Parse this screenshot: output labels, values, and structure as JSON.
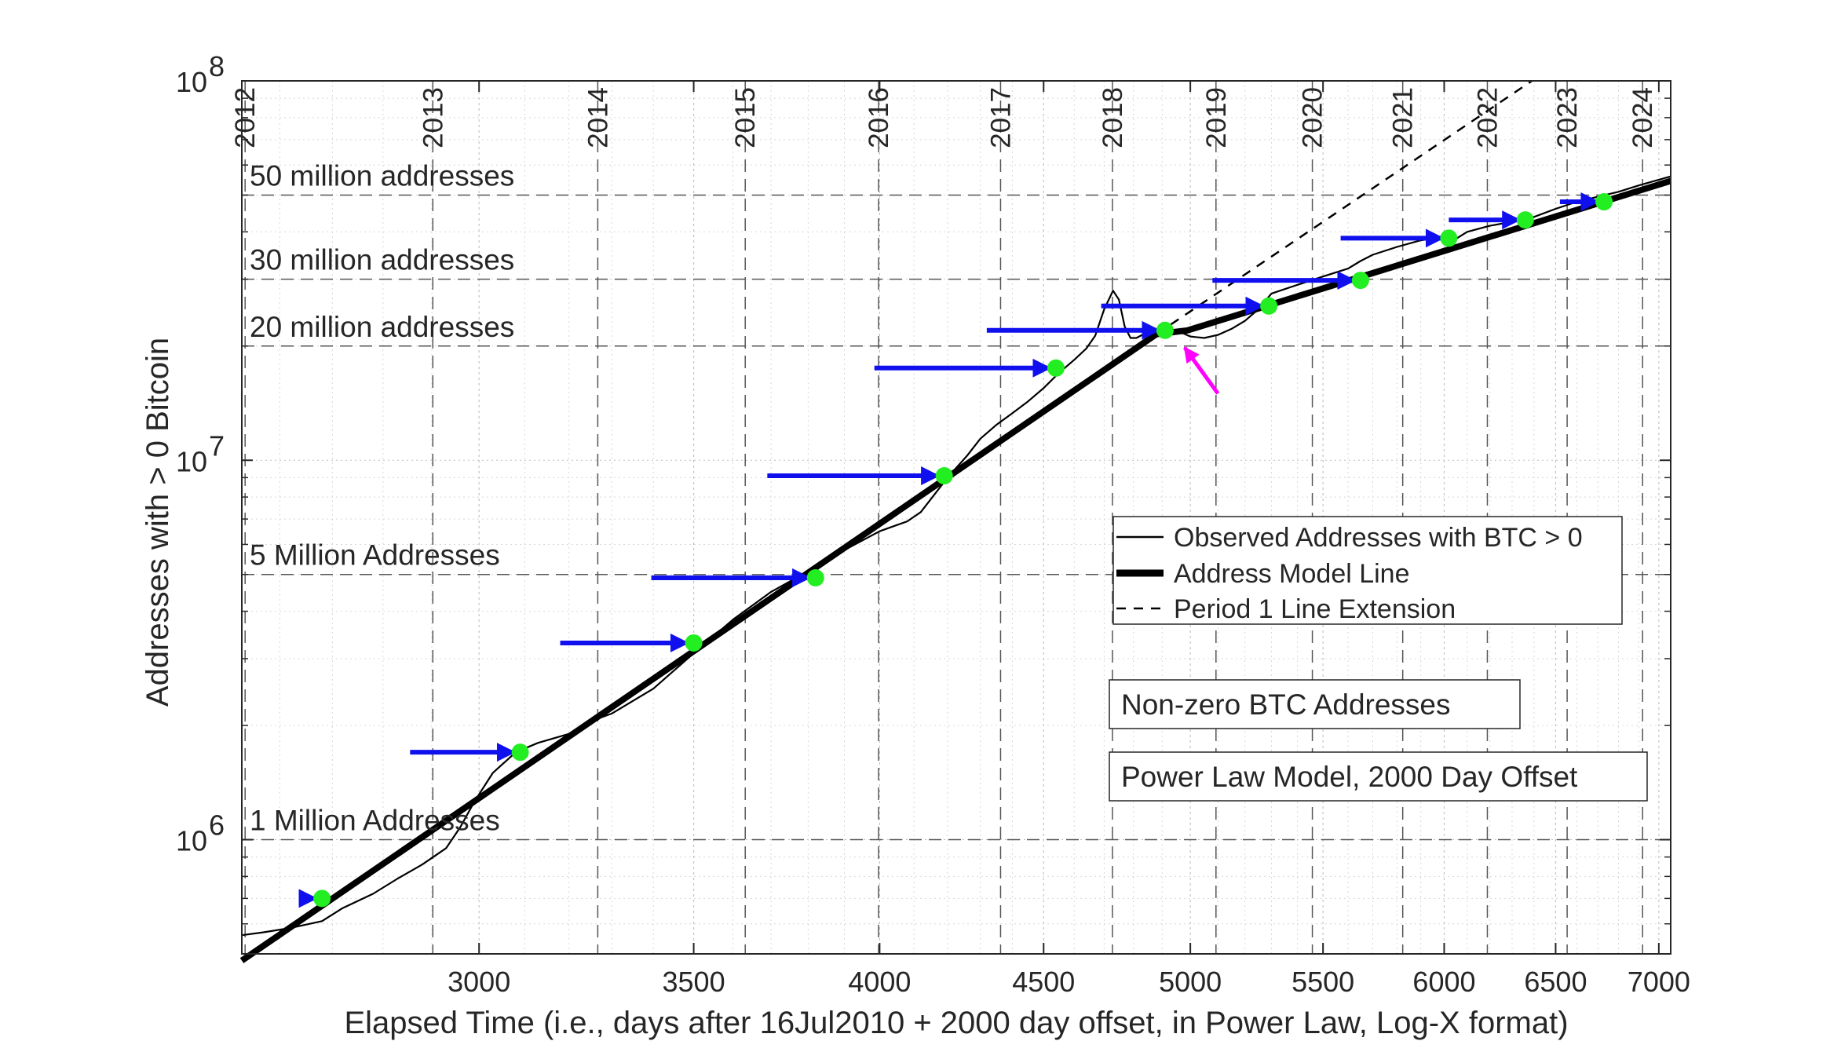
{
  "chart_data": {
    "type": "line",
    "xlabel": "Elapsed Time (i.e., days after 16Jul2010 + 2000 day offset, in Power Law, Log-X format)",
    "ylabel": "Addresses with > 0 Bitcoin",
    "x_scale": "log",
    "y_scale": "log",
    "xlim": [
      2530,
      7060
    ],
    "ylim": [
      500000,
      100000000
    ],
    "x_ticks": [
      3000,
      3500,
      4000,
      4500,
      5000,
      5500,
      6000,
      6500,
      7000
    ],
    "x_tick_labels": [
      "3000",
      "3500",
      "4000",
      "4500",
      "5000",
      "5500",
      "6000",
      "6500",
      "7000"
    ],
    "y_ticks": [
      1000000,
      10000000,
      100000000
    ],
    "y_tick_labels": [
      {
        "base": "10",
        "exp": "6"
      },
      {
        "base": "10",
        "exp": "7"
      },
      {
        "base": "10",
        "exp": "8"
      }
    ],
    "grid": "on",
    "year_lines": [
      {
        "label": "2012",
        "x": 2536
      },
      {
        "label": "2013",
        "x": 2902
      },
      {
        "label": "2014",
        "x": 3267
      },
      {
        "label": "2015",
        "x": 3632
      },
      {
        "label": "2016",
        "x": 3997
      },
      {
        "label": "2017",
        "x": 4363
      },
      {
        "label": "2018",
        "x": 4728
      },
      {
        "label": "2019",
        "x": 5093
      },
      {
        "label": "2020",
        "x": 5458
      },
      {
        "label": "2021",
        "x": 5824
      },
      {
        "label": "2022",
        "x": 6189
      },
      {
        "label": "2023",
        "x": 6554
      },
      {
        "label": "2024",
        "x": 6919
      }
    ],
    "reference_lines": [
      {
        "label": "50 million addresses",
        "y": 50000000
      },
      {
        "label": "30 million addresses",
        "y": 30000000
      },
      {
        "label": "20 million addresses",
        "y": 20000000
      },
      {
        "label": "5 Million Addresses",
        "y": 5000000
      },
      {
        "label": "1 Million Addresses",
        "y": 1000000
      }
    ],
    "series": [
      {
        "name": "Observed Addresses with BTC > 0",
        "style": "thin",
        "x": [
          2530,
          2570,
          2620,
          2680,
          2720,
          2780,
          2830,
          2880,
          2930,
          2960,
          2990,
          3030,
          3080,
          3130,
          3200,
          3250,
          3300,
          3400,
          3500,
          3600,
          3700,
          3800,
          3900,
          4000,
          4080,
          4120,
          4200,
          4260,
          4300,
          4350,
          4400,
          4450,
          4500,
          4550,
          4600,
          4640,
          4670,
          4700,
          4730,
          4750,
          4770,
          4790,
          4810,
          4830,
          4860,
          4900,
          4950,
          5000,
          5050,
          5100,
          5150,
          5200,
          5250,
          5300,
          5400,
          5500,
          5600,
          5650,
          5700,
          5800,
          5900,
          6000,
          6050,
          6100,
          6200,
          6300,
          6400,
          6500,
          6600,
          6700,
          6800,
          6900,
          7060
        ],
        "y": [
          560000,
          570000,
          585000,
          610000,
          660000,
          720000,
          790000,
          860000,
          950000,
          1080000,
          1260000,
          1500000,
          1700000,
          1800000,
          1900000,
          2050000,
          2150000,
          2500000,
          3100000,
          3800000,
          4500000,
          5100000,
          5800000,
          6500000,
          6900000,
          7300000,
          9000000,
          10300000,
          11400000,
          12400000,
          13300000,
          14300000,
          15500000,
          17000000,
          18400000,
          19700000,
          21300000,
          25000000,
          28000000,
          26500000,
          22500000,
          21000000,
          21000000,
          21400000,
          21800000,
          22200000,
          22000000,
          21200000,
          21000000,
          21400000,
          22200000,
          23300000,
          25000000,
          27500000,
          29000000,
          30500000,
          32000000,
          33500000,
          34800000,
          36500000,
          38000000,
          38800000,
          38300000,
          40000000,
          41500000,
          42500000,
          43800000,
          46000000,
          48000000,
          49500000,
          51000000,
          53000000,
          56000000
        ]
      },
      {
        "name": "Address Model Line",
        "style": "thick",
        "x": [
          2530,
          4880,
          4990,
          7060
        ],
        "y": [
          480000,
          21500000,
          22000000,
          54500000
        ]
      },
      {
        "name": "Period 1 Line Extension",
        "style": "dashed",
        "x": [
          4880,
          6390
        ],
        "y": [
          21500000,
          100000000
        ]
      }
    ],
    "markers": [
      {
        "x": 2680,
        "y": 700000,
        "arrow_from_x": 2640
      },
      {
        "x": 3090,
        "y": 1700000,
        "arrow_from_x": 2855
      },
      {
        "x": 3500,
        "y": 3300000,
        "arrow_from_x": 3180
      },
      {
        "x": 3820,
        "y": 4900000,
        "arrow_from_x": 3395
      },
      {
        "x": 4190,
        "y": 9100000,
        "arrow_from_x": 3690
      },
      {
        "x": 4540,
        "y": 17500000,
        "arrow_from_x": 3985
      },
      {
        "x": 4910,
        "y": 22000000,
        "arrow_from_x": 4320
      },
      {
        "x": 5290,
        "y": 25500000,
        "arrow_from_x": 4690
      },
      {
        "x": 5650,
        "y": 29800000,
        "arrow_from_x": 5080
      },
      {
        "x": 6020,
        "y": 38500000,
        "arrow_from_x": 5570
      },
      {
        "x": 6360,
        "y": 43000000,
        "arrow_from_x": 6020
      },
      {
        "x": 6730,
        "y": 48000000,
        "arrow_from_x": 6520
      }
    ],
    "highlight_arrow": {
      "color": "#ff00ff",
      "from": {
        "x": 5100,
        "y": 15000000
      },
      "to": {
        "x": 4980,
        "y": 19800000
      }
    },
    "marker_color": "#22ee22",
    "arrow_color": "#1010ee",
    "legend": {
      "placement": "center-right",
      "entries": [
        {
          "label": "Observed Addresses with BTC > 0",
          "style": "thin"
        },
        {
          "label": "Address Model Line",
          "style": "thick"
        },
        {
          "label": "Period 1 Line Extension",
          "style": "dashed"
        }
      ]
    },
    "annotations": [
      "Non-zero BTC Addresses",
      "Power Law Model, 2000 Day Offset"
    ]
  }
}
